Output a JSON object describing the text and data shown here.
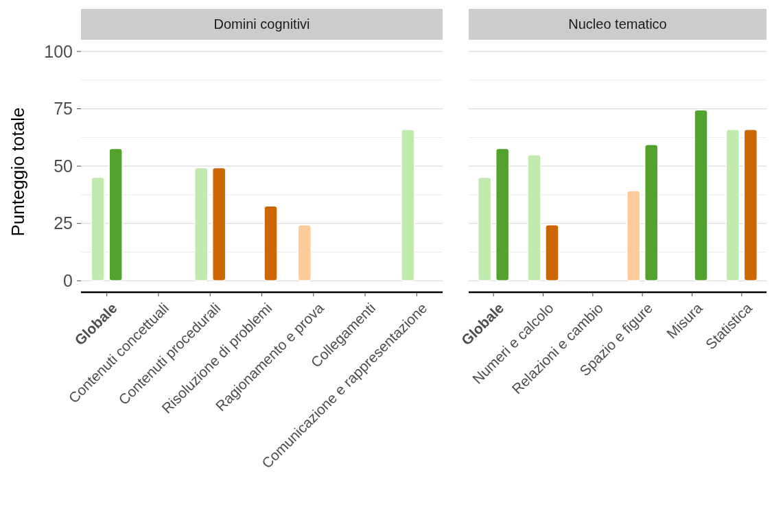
{
  "chart_data": [
    {
      "type": "bar",
      "title": "Domini cognitivi",
      "ylabel": "Punteggio totale",
      "categories": [
        "Globale",
        "Contenuti concettuali",
        "Contenuti procedurali",
        "Risoluzione di problemi",
        "Ragionamento e prova",
        "Collegamenti",
        "Comunicazione e rappresentazione"
      ],
      "series": [
        {
          "colors": [
            "#c2eaaf",
            null,
            "#c2eaaf",
            null,
            "#ffcc99",
            null,
            "#c2eaaf"
          ],
          "values": [
            45.1,
            null,
            49.3,
            null,
            24.3,
            null,
            66
          ]
        },
        {
          "colors": [
            "#52a32c",
            null,
            "#cc6600",
            "#cc6600",
            null,
            null,
            null
          ],
          "values": [
            57.7,
            null,
            49.3,
            32.6,
            null,
            null,
            null
          ]
        }
      ],
      "ylim": [
        -5,
        100
      ],
      "yticks": [
        0,
        25,
        50,
        75,
        100
      ],
      "grid": true
    },
    {
      "type": "bar",
      "title": "Nucleo tematico",
      "categories": [
        "Globale",
        "Numeri e calcolo",
        "Relazioni e cambio",
        "Spazio e figure",
        "Misura",
        "Statistica"
      ],
      "series": [
        {
          "colors": [
            "#c2eaaf",
            "#c2eaaf",
            null,
            "#ffcc99",
            null,
            "#c2eaaf"
          ],
          "values": [
            45.1,
            54.9,
            null,
            39.3,
            null,
            66
          ]
        },
        {
          "colors": [
            "#52a32c",
            "#cc6600",
            null,
            "#52a32c",
            "#52a32c",
            "#cc6600"
          ],
          "values": [
            57.7,
            24.4,
            null,
            59.4,
            74.5,
            66
          ]
        }
      ],
      "ylim": [
        -5,
        100
      ],
      "yticks": [
        0,
        25,
        50,
        75,
        100
      ],
      "grid": true,
      "tick_labels": "x"
    }
  ]
}
